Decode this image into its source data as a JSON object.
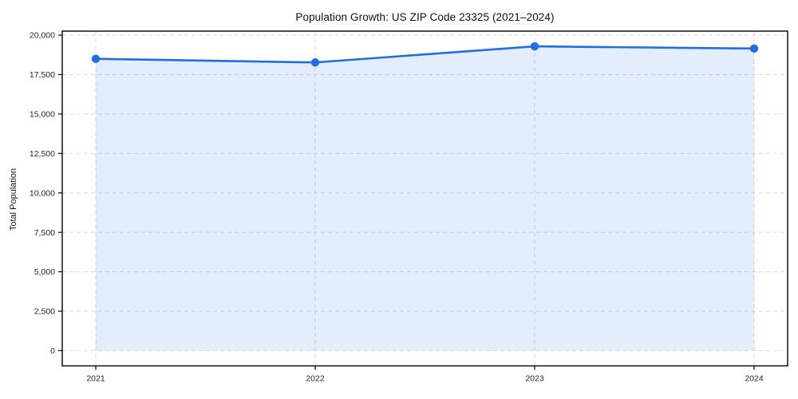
{
  "chart_data": {
    "type": "area",
    "title": "Population Growth: US ZIP Code 23325 (2021–2024)",
    "x": [
      2021,
      2022,
      2023,
      2024
    ],
    "x_labels": [
      "2021",
      "2022",
      "2023",
      "2024"
    ],
    "series": [
      {
        "name": "Total Population",
        "values": [
          18500,
          18270,
          19290,
          19150
        ]
      }
    ],
    "xlabel": "",
    "ylabel": "Total Population",
    "ylim": [
      -965,
      20255
    ],
    "yticks": [
      0,
      2500,
      5000,
      7500,
      10000,
      12500,
      15000,
      17500,
      20000
    ],
    "ytick_labels": [
      "0",
      "2,500",
      "5,000",
      "7,500",
      "10,000",
      "12,500",
      "15,000",
      "17,500",
      "20,000"
    ],
    "grid": true,
    "grid_style": "dashed",
    "legend": false,
    "fill_baseline": 0,
    "markers": true,
    "colors": {
      "line": "#1f6fe0",
      "fill": "rgba(31,111,224,0.12)",
      "grid": "#d9d9d9",
      "spine": "#000000",
      "tick_text": "#262626",
      "title_text": "#111111"
    }
  }
}
